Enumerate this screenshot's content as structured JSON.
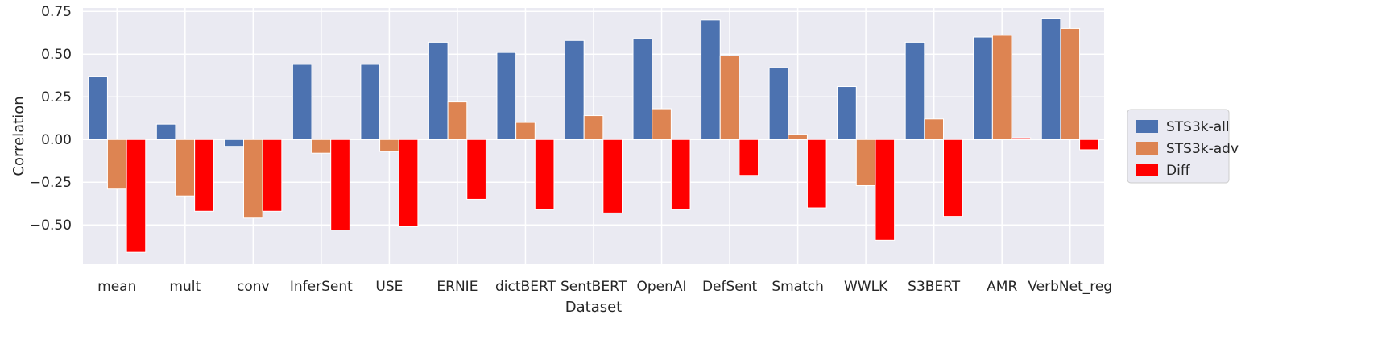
{
  "chart_data": {
    "type": "bar",
    "xlabel": "Dataset",
    "ylabel": "Correlation",
    "ylim": [
      -0.73,
      0.77
    ],
    "yticks": [
      -0.5,
      -0.25,
      0.0,
      0.25,
      0.5,
      0.75
    ],
    "ytick_labels": [
      "−0.50",
      "−0.25",
      "0.00",
      "0.25",
      "0.50",
      "0.75"
    ],
    "grid": true,
    "legend_position": "right",
    "categories": [
      "mean",
      "mult",
      "conv",
      "InferSent",
      "USE",
      "ERNIE",
      "dictBERT",
      "SentBERT",
      "OpenAI",
      "DefSent",
      "Smatch",
      "WWLK",
      "S3BERT",
      "AMR",
      "VerbNet_reg"
    ],
    "series": [
      {
        "name": "STS3k-all",
        "color": "#4c72b0",
        "values": [
          0.37,
          0.09,
          -0.04,
          0.44,
          0.44,
          0.57,
          0.51,
          0.58,
          0.59,
          0.7,
          0.42,
          0.31,
          0.57,
          0.6,
          0.71
        ]
      },
      {
        "name": "STS3k-adv",
        "color": "#dd8452",
        "values": [
          -0.29,
          -0.33,
          -0.46,
          -0.08,
          -0.07,
          0.22,
          0.1,
          0.14,
          0.18,
          0.49,
          0.03,
          -0.27,
          0.12,
          0.61,
          0.65
        ]
      },
      {
        "name": "Diff",
        "color": "#ff0000",
        "values": [
          -0.66,
          -0.42,
          -0.42,
          -0.53,
          -0.51,
          -0.35,
          -0.41,
          -0.43,
          -0.41,
          -0.21,
          -0.4,
          -0.59,
          -0.45,
          0.01,
          -0.06
        ]
      }
    ]
  }
}
